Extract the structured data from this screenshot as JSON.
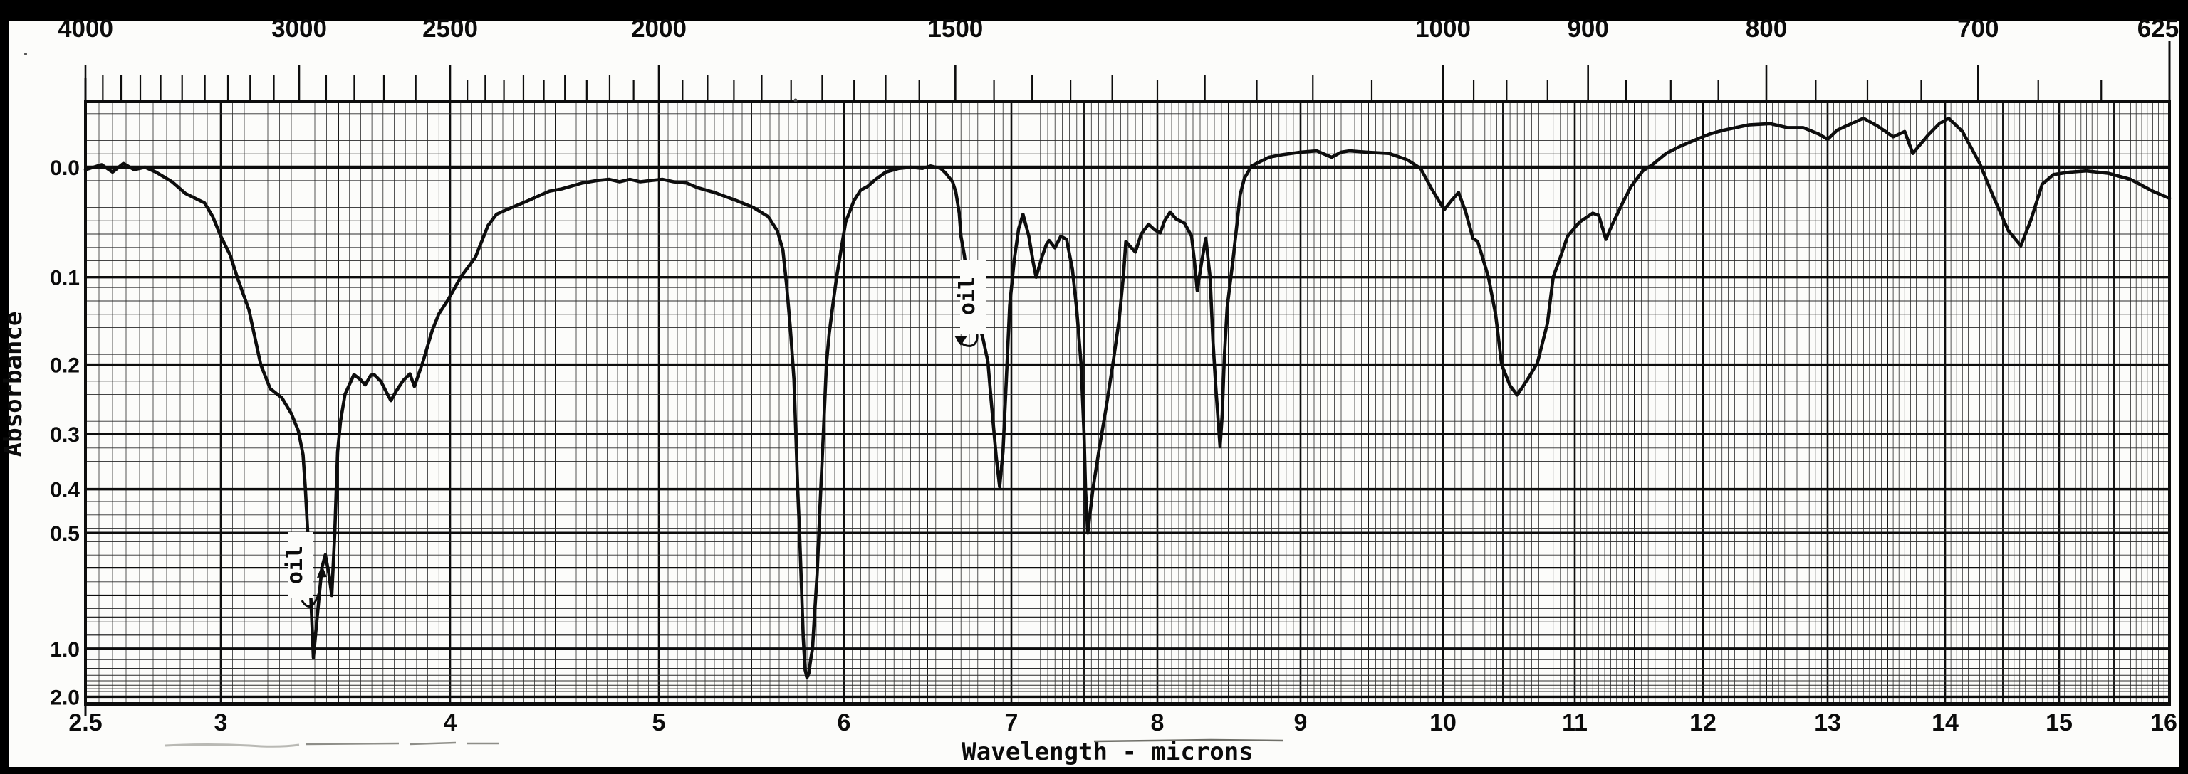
{
  "colors": {
    "background": "#000000",
    "paper": "#fcfcfa",
    "ink": "#0d0d0d",
    "grid_minor": "#2a2a2a"
  },
  "chart_data": {
    "type": "line",
    "title": "",
    "xlabel": "Wavelength - microns",
    "ylabel": "Absorbance",
    "x_axis": {
      "unit": "microns",
      "range": [
        2.5,
        16
      ],
      "tick_labels": [
        "2.5",
        "3",
        "4",
        "5",
        "6",
        "7",
        "8",
        "9",
        "10",
        "11",
        "12",
        "13",
        "14",
        "15",
        "16"
      ],
      "tick_values": [
        2.5,
        3,
        4,
        5,
        6,
        7,
        8,
        9,
        10,
        11,
        12,
        13,
        14,
        15,
        16
      ],
      "grid": "minor every 0.05 micron, medium every 0.5, heavy every 1.0"
    },
    "top_axis": {
      "tick_labels": [
        "4000",
        "3000",
        "2500",
        "2000",
        "1500",
        "1000",
        "900",
        "800",
        "700",
        "625"
      ],
      "labeled_ticks": [
        4000,
        3000,
        2500,
        2000,
        1500,
        1000,
        900,
        800,
        700,
        625
      ],
      "minor_ticks": [
        3900,
        3800,
        3700,
        3600,
        3500,
        3400,
        3300,
        3200,
        3100,
        2900,
        2800,
        2700,
        2600,
        2450,
        2400,
        2350,
        2300,
        2250,
        2200,
        2150,
        2100,
        2050,
        1950,
        1900,
        1850,
        1800,
        1750,
        1700,
        1650,
        1600,
        1550,
        1450,
        1400,
        1350,
        1300,
        1250,
        1200,
        1150,
        1100,
        1050,
        975,
        950,
        925,
        875,
        850,
        825,
        775,
        750,
        725,
        675,
        650
      ]
    },
    "y_axis": {
      "scale": "absorbance, linear in transmittance",
      "tick_labels": [
        "0.0",
        "0.1",
        "0.2",
        "0.3",
        "0.4",
        "0.5",
        "1.0",
        "2.0"
      ],
      "tick_values": [
        0.0,
        0.1,
        0.2,
        0.3,
        0.4,
        0.5,
        1.0,
        2.0
      ],
      "ylim": [
        -0.06,
        2.3
      ]
    },
    "annotations": [
      {
        "text": "oil",
        "micron": 3.42,
        "absorbance_pointed": 0.56
      },
      {
        "text": "oil",
        "micron": 6.87,
        "absorbance_pointed": 0.17
      }
    ],
    "series": [
      {
        "name": "ir-spectrum-trace",
        "points": [
          [
            2.5,
            0.002
          ],
          [
            2.56,
            -0.002
          ],
          [
            2.6,
            0.004
          ],
          [
            2.64,
            -0.003
          ],
          [
            2.68,
            0.002
          ],
          [
            2.72,
            0.0
          ],
          [
            2.76,
            0.004
          ],
          [
            2.82,
            0.012
          ],
          [
            2.87,
            0.022
          ],
          [
            2.94,
            0.03
          ],
          [
            2.97,
            0.042
          ],
          [
            3.0,
            0.06
          ],
          [
            3.04,
            0.078
          ],
          [
            3.07,
            0.1
          ],
          [
            3.12,
            0.135
          ],
          [
            3.17,
            0.2
          ],
          [
            3.21,
            0.232
          ],
          [
            3.26,
            0.245
          ],
          [
            3.3,
            0.268
          ],
          [
            3.33,
            0.295
          ],
          [
            3.35,
            0.335
          ],
          [
            3.36,
            0.4
          ],
          [
            3.37,
            0.5
          ],
          [
            3.38,
            0.64
          ],
          [
            3.385,
            0.75
          ],
          [
            3.39,
            0.9
          ],
          [
            3.394,
            1.08
          ],
          [
            3.41,
            0.8
          ],
          [
            3.43,
            0.6
          ],
          [
            3.445,
            0.56
          ],
          [
            3.46,
            0.62
          ],
          [
            3.472,
            0.7
          ],
          [
            3.485,
            0.5
          ],
          [
            3.497,
            0.33
          ],
          [
            3.51,
            0.28
          ],
          [
            3.53,
            0.24
          ],
          [
            3.57,
            0.213
          ],
          [
            3.6,
            0.22
          ],
          [
            3.62,
            0.227
          ],
          [
            3.645,
            0.214
          ],
          [
            3.66,
            0.213
          ],
          [
            3.69,
            0.222
          ],
          [
            3.72,
            0.24
          ],
          [
            3.735,
            0.249
          ],
          [
            3.76,
            0.235
          ],
          [
            3.79,
            0.221
          ],
          [
            3.82,
            0.212
          ],
          [
            3.84,
            0.229
          ],
          [
            3.86,
            0.212
          ],
          [
            3.88,
            0.195
          ],
          [
            3.92,
            0.158
          ],
          [
            3.95,
            0.139
          ],
          [
            3.99,
            0.124
          ],
          [
            4.05,
            0.1
          ],
          [
            4.12,
            0.08
          ],
          [
            4.18,
            0.05
          ],
          [
            4.22,
            0.04
          ],
          [
            4.28,
            0.035
          ],
          [
            4.37,
            0.028
          ],
          [
            4.47,
            0.02
          ],
          [
            4.53,
            0.018
          ],
          [
            4.63,
            0.013
          ],
          [
            4.7,
            0.011
          ],
          [
            4.76,
            0.01
          ],
          [
            4.81,
            0.012
          ],
          [
            4.86,
            0.01
          ],
          [
            4.91,
            0.012
          ],
          [
            4.96,
            0.011
          ],
          [
            5.02,
            0.01
          ],
          [
            5.08,
            0.012
          ],
          [
            5.15,
            0.013
          ],
          [
            5.21,
            0.017
          ],
          [
            5.3,
            0.021
          ],
          [
            5.42,
            0.028
          ],
          [
            5.51,
            0.034
          ],
          [
            5.59,
            0.042
          ],
          [
            5.64,
            0.055
          ],
          [
            5.67,
            0.073
          ],
          [
            5.69,
            0.108
          ],
          [
            5.71,
            0.155
          ],
          [
            5.73,
            0.22
          ],
          [
            5.74,
            0.3
          ],
          [
            5.75,
            0.4
          ],
          [
            5.76,
            0.5
          ],
          [
            5.77,
            0.66
          ],
          [
            5.78,
            0.92
          ],
          [
            5.79,
            1.22
          ],
          [
            5.8,
            1.34
          ],
          [
            5.81,
            1.27
          ],
          [
            5.82,
            1.1
          ],
          [
            5.83,
            1.0
          ],
          [
            5.84,
            0.8
          ],
          [
            5.855,
            0.62
          ],
          [
            5.87,
            0.44
          ],
          [
            5.89,
            0.29
          ],
          [
            5.905,
            0.2
          ],
          [
            5.92,
            0.162
          ],
          [
            5.94,
            0.129
          ],
          [
            5.96,
            0.1
          ],
          [
            6.01,
            0.047
          ],
          [
            6.06,
            0.028
          ],
          [
            6.1,
            0.019
          ],
          [
            6.14,
            0.016
          ],
          [
            6.19,
            0.01
          ],
          [
            6.25,
            0.004
          ],
          [
            6.33,
            0.001
          ],
          [
            6.4,
            0.0
          ],
          [
            6.47,
            0.001
          ],
          [
            6.52,
            -0.001
          ],
          [
            6.58,
            0.001
          ],
          [
            6.61,
            0.005
          ],
          [
            6.65,
            0.012
          ],
          [
            6.67,
            0.021
          ],
          [
            6.69,
            0.039
          ],
          [
            6.7,
            0.06
          ],
          [
            6.72,
            0.078
          ],
          [
            6.75,
            0.12
          ],
          [
            6.78,
            0.138
          ],
          [
            6.81,
            0.153
          ],
          [
            6.83,
            0.167
          ],
          [
            6.86,
            0.196
          ],
          [
            6.88,
            0.25
          ],
          [
            6.91,
            0.34
          ],
          [
            6.93,
            0.395
          ],
          [
            6.95,
            0.33
          ],
          [
            6.97,
            0.22
          ],
          [
            6.99,
            0.13
          ],
          [
            7.02,
            0.082
          ],
          [
            7.05,
            0.053
          ],
          [
            7.08,
            0.04
          ],
          [
            7.12,
            0.06
          ],
          [
            7.15,
            0.085
          ],
          [
            7.17,
            0.1
          ],
          [
            7.21,
            0.08
          ],
          [
            7.24,
            0.068
          ],
          [
            7.26,
            0.064
          ],
          [
            7.3,
            0.071
          ],
          [
            7.34,
            0.06
          ],
          [
            7.38,
            0.063
          ],
          [
            7.42,
            0.092
          ],
          [
            7.45,
            0.135
          ],
          [
            7.48,
            0.2
          ],
          [
            7.5,
            0.3
          ],
          [
            7.51,
            0.4
          ],
          [
            7.525,
            0.5
          ],
          [
            7.56,
            0.4
          ],
          [
            7.6,
            0.33
          ],
          [
            7.65,
            0.26
          ],
          [
            7.7,
            0.195
          ],
          [
            7.74,
            0.145
          ],
          [
            7.77,
            0.096
          ],
          [
            7.785,
            0.065
          ],
          [
            7.81,
            0.069
          ],
          [
            7.85,
            0.075
          ],
          [
            7.89,
            0.058
          ],
          [
            7.94,
            0.049
          ],
          [
            7.98,
            0.054
          ],
          [
            8.02,
            0.057
          ],
          [
            8.05,
            0.046
          ],
          [
            8.09,
            0.038
          ],
          [
            8.13,
            0.044
          ],
          [
            8.16,
            0.046
          ],
          [
            8.19,
            0.048
          ],
          [
            8.24,
            0.06
          ],
          [
            8.26,
            0.084
          ],
          [
            8.28,
            0.114
          ],
          [
            8.31,
            0.085
          ],
          [
            8.34,
            0.062
          ],
          [
            8.37,
            0.1
          ],
          [
            8.39,
            0.17
          ],
          [
            8.41,
            0.23
          ],
          [
            8.44,
            0.321
          ],
          [
            8.455,
            0.27
          ],
          [
            8.47,
            0.19
          ],
          [
            8.49,
            0.132
          ],
          [
            8.53,
            0.083
          ],
          [
            8.58,
            0.023
          ],
          [
            8.61,
            0.009
          ],
          [
            8.66,
            -0.001
          ],
          [
            8.71,
            -0.004
          ],
          [
            8.78,
            -0.008
          ],
          [
            8.87,
            -0.01
          ],
          [
            9.0,
            -0.012
          ],
          [
            9.12,
            -0.013
          ],
          [
            9.23,
            -0.008
          ],
          [
            9.3,
            -0.012
          ],
          [
            9.36,
            -0.013
          ],
          [
            9.49,
            -0.012
          ],
          [
            9.64,
            -0.011
          ],
          [
            9.76,
            -0.006
          ],
          [
            9.85,
            0.001
          ],
          [
            9.92,
            0.017
          ],
          [
            10.01,
            0.036
          ],
          [
            10.07,
            0.028
          ],
          [
            10.13,
            0.021
          ],
          [
            10.19,
            0.038
          ],
          [
            10.25,
            0.062
          ],
          [
            10.29,
            0.065
          ],
          [
            10.33,
            0.08
          ],
          [
            10.38,
            0.1
          ],
          [
            10.44,
            0.14
          ],
          [
            10.49,
            0.2
          ],
          [
            10.55,
            0.228
          ],
          [
            10.6,
            0.241
          ],
          [
            10.67,
            0.22
          ],
          [
            10.74,
            0.198
          ],
          [
            10.81,
            0.15
          ],
          [
            10.85,
            0.1
          ],
          [
            10.9,
            0.08
          ],
          [
            10.95,
            0.06
          ],
          [
            11.04,
            0.047
          ],
          [
            11.15,
            0.039
          ],
          [
            11.2,
            0.041
          ],
          [
            11.26,
            0.063
          ],
          [
            11.31,
            0.05
          ],
          [
            11.4,
            0.03
          ],
          [
            11.47,
            0.016
          ],
          [
            11.56,
            0.003
          ],
          [
            11.63,
            -0.002
          ],
          [
            11.73,
            -0.011
          ],
          [
            11.84,
            -0.017
          ],
          [
            11.93,
            -0.021
          ],
          [
            12.05,
            -0.026
          ],
          [
            12.16,
            -0.029
          ],
          [
            12.36,
            -0.033
          ],
          [
            12.53,
            -0.034
          ],
          [
            12.67,
            -0.031
          ],
          [
            12.8,
            -0.031
          ],
          [
            12.93,
            -0.026
          ],
          [
            13.0,
            -0.022
          ],
          [
            13.08,
            -0.029
          ],
          [
            13.15,
            -0.032
          ],
          [
            13.3,
            -0.038
          ],
          [
            13.42,
            -0.032
          ],
          [
            13.55,
            -0.024
          ],
          [
            13.65,
            -0.028
          ],
          [
            13.72,
            -0.011
          ],
          [
            13.85,
            -0.025
          ],
          [
            13.95,
            -0.034
          ],
          [
            14.03,
            -0.038
          ],
          [
            14.15,
            -0.028
          ],
          [
            14.3,
            -0.003
          ],
          [
            14.42,
            0.025
          ],
          [
            14.55,
            0.055
          ],
          [
            14.66,
            0.069
          ],
          [
            14.75,
            0.045
          ],
          [
            14.85,
            0.014
          ],
          [
            14.95,
            0.006
          ],
          [
            15.1,
            0.004
          ],
          [
            15.25,
            0.003
          ],
          [
            15.45,
            0.005
          ],
          [
            15.65,
            0.01
          ],
          [
            15.85,
            0.02
          ],
          [
            16.0,
            0.026
          ]
        ]
      }
    ]
  }
}
